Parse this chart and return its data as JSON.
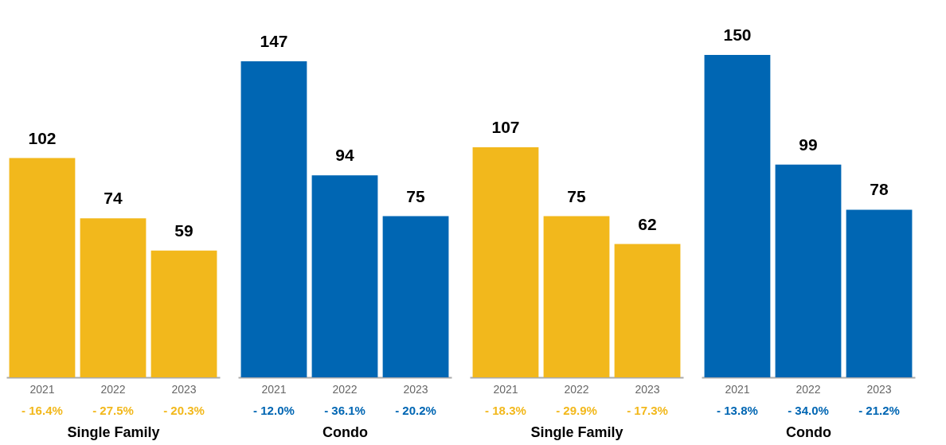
{
  "chart_data": [
    {
      "type": "bar",
      "xlabel": "Single Family",
      "categories": [
        "2021",
        "2022",
        "2023"
      ],
      "values": [
        102,
        74,
        59
      ],
      "color": "#f2b81c",
      "data_labels": true,
      "annotations": [
        "- 16.4%",
        "- 27.5%",
        "- 20.3%"
      ]
    },
    {
      "type": "bar",
      "xlabel": "Condo",
      "categories": [
        "2021",
        "2022",
        "2023"
      ],
      "values": [
        147,
        94,
        75
      ],
      "color": "#0066b3",
      "data_labels": true,
      "annotations": [
        "- 12.0%",
        "- 36.1%",
        "- 20.2%"
      ]
    },
    {
      "type": "bar",
      "xlabel": "Single Family",
      "categories": [
        "2021",
        "2022",
        "2023"
      ],
      "values": [
        107,
        75,
        62
      ],
      "color": "#f2b81c",
      "data_labels": true,
      "annotations": [
        "- 18.3%",
        "- 29.9%",
        "- 17.3%"
      ]
    },
    {
      "type": "bar",
      "xlabel": "Condo",
      "categories": [
        "2021",
        "2022",
        "2023"
      ],
      "values": [
        150,
        99,
        78
      ],
      "color": "#0066b3",
      "data_labels": true,
      "annotations": [
        "- 13.8%",
        "- 34.0%",
        "- 21.2%"
      ]
    }
  ]
}
